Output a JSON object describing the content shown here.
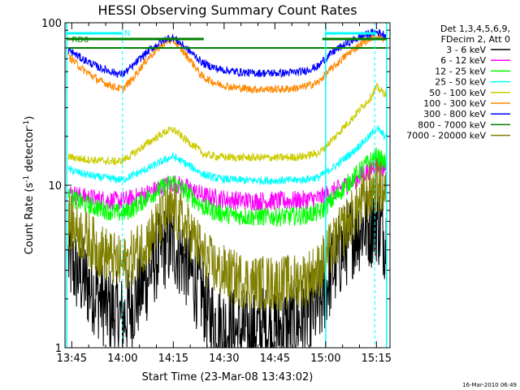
{
  "chart_data": {
    "type": "line",
    "title": "HESSI Observing Summary Count Rates",
    "xlabel": "Start Time (23-Mar-08 13:43:02)",
    "ylabel": "Count Rate (s",
    "ylabel_sup": "-1",
    "ylabel_rest": " detector",
    "ylabel_sup2": "-1",
    "ylabel_end": ")",
    "yscale": "log",
    "ylim": [
      1,
      100
    ],
    "y_ticks": [
      {
        "value": 1,
        "label": "1"
      },
      {
        "value": 10,
        "label": "10"
      },
      {
        "value": 100,
        "label": "100"
      }
    ],
    "xlim_min": [
      45,
      141
    ],
    "x_ticks": [
      {
        "value": 47,
        "label": "13:45"
      },
      {
        "value": 62,
        "label": "14:00"
      },
      {
        "value": 77,
        "label": "14:15"
      },
      {
        "value": 92,
        "label": "14:30"
      },
      {
        "value": 107,
        "label": "14:45"
      },
      {
        "value": 122,
        "label": "15:00"
      },
      {
        "value": 137,
        "label": "15:15"
      }
    ],
    "legend_header": [
      "Det 1,3,4,5,6,9,",
      "FDecim 2, Att 0"
    ],
    "legend_placement": "outside-right",
    "flag_labels": {
      "rd": "RD0",
      "n": "N"
    },
    "date_stamp": "16-Mar-2010 06:49",
    "breaks_min": [
      62,
      86,
      121,
      137
    ],
    "cyan_lines_min": [
      45.5,
      122,
      140
    ],
    "series": [
      {
        "name": "3 - 6 keV",
        "color": "#000000",
        "x": [
          46,
          48,
          51,
          54,
          57,
          60,
          62,
          63,
          66,
          69,
          72,
          75,
          77,
          80,
          83,
          86,
          87,
          90,
          93,
          96,
          99,
          102,
          105,
          108,
          111,
          114,
          117,
          120,
          121,
          122,
          124,
          127,
          130,
          133,
          136,
          137,
          138,
          140
        ],
        "y": [
          3.5,
          3.0,
          2.5,
          2.2,
          1.8,
          1.6,
          1.5,
          1.6,
          2.0,
          2.6,
          3.6,
          4.3,
          4.3,
          3.5,
          2.6,
          2.0,
          1.6,
          1.4,
          1.3,
          1.25,
          1.25,
          1.3,
          1.3,
          1.3,
          1.35,
          1.45,
          1.6,
          1.8,
          2.0,
          2.4,
          3.0,
          4.0,
          5.0,
          5.6,
          5.8,
          6.2,
          5.5,
          4.6
        ]
      },
      {
        "name": "6 - 12 keV",
        "color": "#ff00ff",
        "x": [
          46,
          50,
          55,
          60,
          62,
          65,
          70,
          75,
          77,
          80,
          85,
          86,
          90,
          95,
          100,
          105,
          110,
          115,
          120,
          121,
          125,
          130,
          135,
          137,
          140
        ],
        "y": [
          9.0,
          8.5,
          8.2,
          8.0,
          8.0,
          8.3,
          9.0,
          10.0,
          10.3,
          9.8,
          8.8,
          8.6,
          8.3,
          8.1,
          8.0,
          8.0,
          8.0,
          8.1,
          8.3,
          8.5,
          9.3,
          10.5,
          12.5,
          13.5,
          12.5
        ]
      },
      {
        "name": "12 - 25 keV",
        "color": "#00ff00",
        "x": [
          46,
          50,
          55,
          60,
          62,
          65,
          70,
          75,
          77,
          80,
          85,
          86,
          90,
          95,
          100,
          105,
          110,
          115,
          120,
          121,
          125,
          130,
          135,
          137,
          140
        ],
        "y": [
          8.5,
          7.8,
          7.2,
          6.8,
          6.7,
          7.2,
          8.6,
          10.0,
          10.5,
          9.3,
          7.6,
          7.3,
          6.8,
          6.5,
          6.4,
          6.4,
          6.4,
          6.5,
          6.8,
          7.0,
          8.5,
          11.0,
          14.0,
          15.0,
          13.5
        ]
      },
      {
        "name": "25 - 50 keV",
        "color": "#00ffff",
        "x": [
          46,
          50,
          55,
          60,
          62,
          65,
          70,
          75,
          77,
          80,
          85,
          86,
          90,
          95,
          100,
          105,
          110,
          115,
          120,
          121,
          125,
          130,
          135,
          137,
          140
        ],
        "y": [
          12.5,
          11.8,
          11.2,
          10.9,
          10.8,
          11.5,
          12.8,
          14.5,
          15.0,
          13.8,
          12.0,
          11.6,
          11.0,
          10.8,
          10.7,
          10.7,
          10.7,
          10.8,
          11.2,
          11.6,
          13.2,
          16.0,
          20.0,
          22.5,
          19.5
        ]
      },
      {
        "name": "50 - 100 keV",
        "color": "#cccc00",
        "x": [
          46,
          50,
          55,
          60,
          62,
          65,
          70,
          75,
          77,
          80,
          85,
          86,
          90,
          95,
          100,
          105,
          110,
          115,
          120,
          121,
          125,
          130,
          135,
          137,
          140
        ],
        "y": [
          15.0,
          14.5,
          14.2,
          14.0,
          14.2,
          15.5,
          18.5,
          21.5,
          22.0,
          19.5,
          16.2,
          15.5,
          15.0,
          14.8,
          14.8,
          14.8,
          14.8,
          15.0,
          15.8,
          16.5,
          20.0,
          26.0,
          34.0,
          40.0,
          36.0
        ]
      },
      {
        "name": "100 - 300 keV",
        "color": "#ff8800",
        "x": [
          46,
          50,
          55,
          60,
          62,
          65,
          70,
          75,
          77,
          80,
          85,
          86,
          90,
          95,
          100,
          105,
          110,
          115,
          120,
          121,
          125,
          130,
          135,
          137,
          140
        ],
        "y": [
          62,
          52,
          44,
          40,
          39,
          45,
          62,
          77,
          78,
          66,
          48,
          46,
          42,
          40,
          39,
          39,
          39,
          40,
          43,
          46,
          55,
          68,
          80,
          84,
          78
        ]
      },
      {
        "name": "300 - 800 keV",
        "color": "#0000ff",
        "x": [
          46,
          50,
          55,
          60,
          62,
          65,
          70,
          75,
          77,
          80,
          85,
          86,
          90,
          95,
          100,
          105,
          110,
          115,
          120,
          121,
          125,
          130,
          135,
          137,
          140
        ],
        "y": [
          68,
          60,
          53,
          49,
          48,
          54,
          68,
          80,
          81,
          72,
          58,
          56,
          52,
          50,
          49,
          49,
          49,
          50,
          54,
          58,
          68,
          78,
          86,
          88,
          84
        ]
      },
      {
        "name": "800 - 7000 keV",
        "color": "#008000",
        "x": [
          46,
          140
        ],
        "y": [
          70,
          70
        ]
      },
      {
        "name": "7000 - 20000 keV",
        "color": "#808000",
        "x": [
          46,
          50,
          55,
          60,
          62,
          65,
          70,
          75,
          77,
          80,
          85,
          86,
          90,
          95,
          100,
          105,
          110,
          115,
          120,
          121,
          125,
          130,
          135,
          137,
          140
        ],
        "y": [
          6.0,
          5.0,
          4.0,
          3.4,
          3.2,
          3.6,
          4.8,
          6.6,
          7.0,
          5.7,
          4.0,
          3.6,
          3.0,
          2.7,
          2.5,
          2.5,
          2.5,
          2.6,
          3.0,
          3.3,
          4.5,
          6.5,
          9.0,
          10.0,
          9.0
        ]
      }
    ]
  }
}
